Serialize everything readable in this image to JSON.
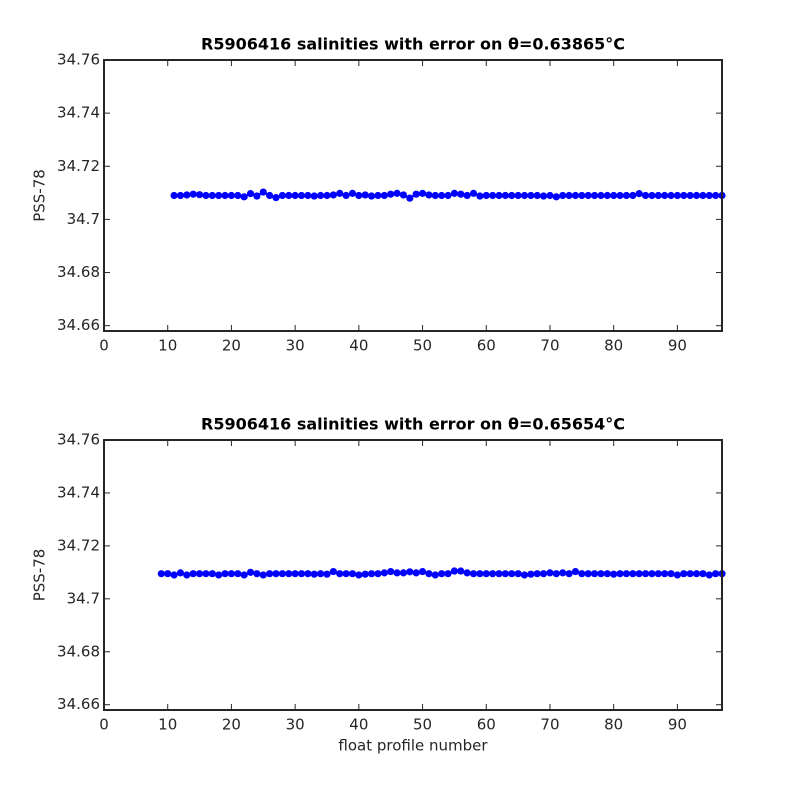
{
  "chart_data": [
    {
      "type": "scatter",
      "title": "R5906416 salinities with error on θ=0.63865°C",
      "ylabel": "PSS-78",
      "x": [
        11,
        12,
        13,
        14,
        15,
        16,
        17,
        18,
        19,
        20,
        21,
        22,
        23,
        24,
        25,
        26,
        27,
        28,
        29,
        30,
        31,
        32,
        33,
        34,
        35,
        36,
        37,
        38,
        39,
        40,
        41,
        42,
        43,
        44,
        45,
        46,
        47,
        48,
        49,
        50,
        51,
        52,
        53,
        54,
        55,
        56,
        57,
        58,
        59,
        60,
        61,
        62,
        63,
        64,
        65,
        66,
        67,
        68,
        69,
        70,
        71,
        72,
        73,
        74,
        75,
        76,
        77,
        78,
        79,
        80,
        81,
        82,
        83,
        84,
        85,
        86,
        87,
        88,
        89,
        90,
        91,
        92,
        93,
        94,
        95,
        96,
        97
      ],
      "values": [
        34.709,
        34.709,
        34.7092,
        34.7095,
        34.7093,
        34.709,
        34.709,
        34.709,
        34.709,
        34.709,
        34.709,
        34.7085,
        34.7097,
        34.7088,
        34.7103,
        34.709,
        34.7082,
        34.709,
        34.709,
        34.709,
        34.709,
        34.709,
        34.7088,
        34.709,
        34.709,
        34.7092,
        34.7098,
        34.709,
        34.7098,
        34.709,
        34.7092,
        34.7088,
        34.709,
        34.709,
        34.7095,
        34.7098,
        34.7092,
        34.708,
        34.7095,
        34.7098,
        34.7092,
        34.709,
        34.709,
        34.709,
        34.7098,
        34.7095,
        34.709,
        34.7098,
        34.7088,
        34.709,
        34.709,
        34.709,
        34.709,
        34.709,
        34.709,
        34.709,
        34.709,
        34.709,
        34.7088,
        34.709,
        34.7085,
        34.709,
        34.709,
        34.709,
        34.709,
        34.709,
        34.709,
        34.709,
        34.709,
        34.709,
        34.709,
        34.709,
        34.709,
        34.7097,
        34.709,
        34.709,
        34.709,
        34.709,
        34.709,
        34.709,
        34.709,
        34.709,
        34.709,
        34.709,
        34.709,
        34.709,
        34.709
      ],
      "error": 0.0003,
      "color": "#0000ff",
      "error_color": "#ff0000",
      "xlim": [
        0,
        97
      ],
      "xticks": [
        0,
        10,
        20,
        30,
        40,
        50,
        60,
        70,
        80,
        90
      ],
      "ylim": [
        34.658,
        34.76
      ],
      "yticks": [
        34.66,
        34.68,
        34.7,
        34.72,
        34.74,
        34.76
      ]
    },
    {
      "type": "scatter",
      "title": "R5906416 salinities with error on θ=0.65654°C",
      "ylabel": "PSS-78",
      "xlabel": "float profile number",
      "x": [
        9,
        10,
        11,
        12,
        13,
        14,
        15,
        16,
        17,
        18,
        19,
        20,
        21,
        22,
        23,
        24,
        25,
        26,
        27,
        28,
        29,
        30,
        31,
        32,
        33,
        34,
        35,
        36,
        37,
        38,
        39,
        40,
        41,
        42,
        43,
        44,
        45,
        46,
        47,
        48,
        49,
        50,
        51,
        52,
        53,
        54,
        55,
        56,
        57,
        58,
        59,
        60,
        61,
        62,
        63,
        64,
        65,
        66,
        67,
        68,
        69,
        70,
        71,
        72,
        73,
        74,
        75,
        76,
        77,
        78,
        79,
        80,
        81,
        82,
        83,
        84,
        85,
        86,
        87,
        88,
        89,
        90,
        91,
        92,
        93,
        94,
        95,
        96,
        97
      ],
      "values": [
        34.7095,
        34.7095,
        34.709,
        34.7098,
        34.709,
        34.7095,
        34.7095,
        34.7095,
        34.7095,
        34.709,
        34.7095,
        34.7095,
        34.7095,
        34.709,
        34.71,
        34.7095,
        34.709,
        34.7095,
        34.7095,
        34.7095,
        34.7095,
        34.7095,
        34.7095,
        34.7095,
        34.7093,
        34.7095,
        34.7093,
        34.7103,
        34.7095,
        34.7095,
        34.7095,
        34.709,
        34.7093,
        34.7095,
        34.7095,
        34.7098,
        34.7103,
        34.7098,
        34.7098,
        34.7102,
        34.7098,
        34.7103,
        34.7095,
        34.709,
        34.7095,
        34.7095,
        34.7105,
        34.7105,
        34.7098,
        34.7095,
        34.7095,
        34.7095,
        34.7095,
        34.7095,
        34.7095,
        34.7095,
        34.7095,
        34.709,
        34.7093,
        34.7095,
        34.7095,
        34.7098,
        34.7095,
        34.7098,
        34.7095,
        34.7103,
        34.7095,
        34.7095,
        34.7095,
        34.7095,
        34.7095,
        34.7093,
        34.7095,
        34.7095,
        34.7095,
        34.7095,
        34.7095,
        34.7095,
        34.7095,
        34.7095,
        34.7095,
        34.709,
        34.7095,
        34.7095,
        34.7095,
        34.7095,
        34.709,
        34.7095,
        34.7095
      ],
      "error": 0.0003,
      "color": "#0000ff",
      "error_color": "#ff0000",
      "xlim": [
        0,
        97
      ],
      "xticks": [
        0,
        10,
        20,
        30,
        40,
        50,
        60,
        70,
        80,
        90
      ],
      "ylim": [
        34.658,
        34.76
      ],
      "yticks": [
        34.66,
        34.68,
        34.7,
        34.72,
        34.74,
        34.76
      ]
    }
  ]
}
